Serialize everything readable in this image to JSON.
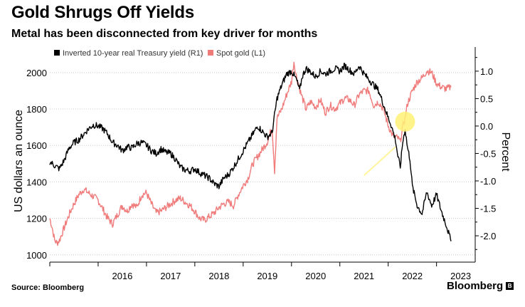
{
  "chart_data": {
    "type": "line",
    "title": "Gold Shrugs Off Yields",
    "subtitle": "Metal has been disconnected from key driver for months",
    "ylabel_left": "US dollars an ounce",
    "ylabel_right": "Percent",
    "ylim_left": [
      960,
      2140
    ],
    "ylim_right": [
      -2.48,
      1.44
    ],
    "yticks_left": [
      1000,
      1200,
      1400,
      1600,
      1800,
      2000
    ],
    "yticks_right": [
      1.0,
      0.5,
      0.0,
      -0.5,
      -1.0,
      -1.5,
      -2.0
    ],
    "ytick_labels_left": [
      "1000",
      "1200",
      "1400",
      "1600",
      "1800",
      "2000"
    ],
    "ytick_labels_right": [
      "1.0",
      "0.5",
      "0.0",
      "-0.5",
      "-1.0",
      "-1.5",
      "-2.0"
    ],
    "xlim": [
      2015.0,
      2023.8
    ],
    "xticks": [
      2016,
      2017,
      2018,
      2019,
      2020,
      2021,
      2022,
      2023
    ],
    "xtick_labels": [
      "2016",
      "2017",
      "2018",
      "2019",
      "2020",
      "2021",
      "2022",
      "2023"
    ],
    "grid": true,
    "legend_position": "top-left",
    "legend": [
      "Inverted 10-year real Treasury yield (R1)",
      "Spot gold (L1)"
    ],
    "series": [
      {
        "name": "Inverted 10-year real Treasury yield (R1)",
        "axis": "right",
        "color": "#000000",
        "x": [
          2015.0,
          2015.1,
          2015.2,
          2015.3,
          2015.4,
          2015.5,
          2015.6,
          2015.7,
          2015.8,
          2015.9,
          2016.0,
          2016.1,
          2016.2,
          2016.3,
          2016.4,
          2016.5,
          2016.6,
          2016.7,
          2016.8,
          2016.9,
          2017.0,
          2017.1,
          2017.2,
          2017.3,
          2017.4,
          2017.5,
          2017.6,
          2017.7,
          2017.8,
          2017.9,
          2018.0,
          2018.1,
          2018.2,
          2018.3,
          2018.4,
          2018.5,
          2018.6,
          2018.7,
          2018.8,
          2018.9,
          2019.0,
          2019.1,
          2019.2,
          2019.3,
          2019.4,
          2019.5,
          2019.6,
          2019.65,
          2019.7,
          2019.8,
          2019.9,
          2020.0,
          2020.1,
          2020.17,
          2020.22,
          2020.3,
          2020.4,
          2020.5,
          2020.6,
          2020.7,
          2020.8,
          2020.9,
          2021.0,
          2021.1,
          2021.2,
          2021.3,
          2021.4,
          2021.5,
          2021.6,
          2021.7,
          2021.8,
          2021.9,
          2022.0,
          2022.05,
          2022.1,
          2022.15,
          2022.2,
          2022.25,
          2022.3,
          2022.35,
          2022.4,
          2022.45,
          2022.5,
          2022.6,
          2022.7,
          2022.8,
          2022.9,
          2023.0,
          2023.1,
          2023.2,
          2023.3
        ],
        "y": [
          -0.65,
          -0.72,
          -0.78,
          -0.62,
          -0.4,
          -0.3,
          -0.25,
          -0.15,
          -0.05,
          0.02,
          0.0,
          -0.05,
          -0.15,
          -0.3,
          -0.35,
          -0.45,
          -0.38,
          -0.4,
          -0.32,
          -0.3,
          -0.35,
          -0.45,
          -0.5,
          -0.42,
          -0.48,
          -0.5,
          -0.6,
          -0.75,
          -0.8,
          -0.82,
          -0.78,
          -0.85,
          -0.9,
          -0.95,
          -1.05,
          -1.1,
          -0.95,
          -0.88,
          -0.75,
          -0.6,
          -0.45,
          -0.3,
          -0.15,
          0.0,
          -0.1,
          -0.2,
          -0.12,
          0.2,
          0.5,
          0.75,
          0.95,
          1.0,
          0.85,
          0.65,
          0.9,
          1.05,
          0.98,
          0.9,
          1.0,
          0.95,
          1.0,
          1.05,
          1.0,
          1.1,
          1.02,
          0.95,
          1.1,
          0.95,
          0.85,
          0.75,
          0.65,
          0.4,
          0.15,
          0.05,
          -0.1,
          -0.25,
          -0.55,
          -0.75,
          -0.3,
          -0.05,
          -0.4,
          -0.6,
          -1.1,
          -1.45,
          -1.6,
          -1.2,
          -1.45,
          -1.25,
          -1.55,
          -1.8,
          -2.1
        ]
      },
      {
        "name": "Spot gold (L1)",
        "axis": "left",
        "color": "#f07b7b",
        "x": [
          2015.0,
          2015.05,
          2015.1,
          2015.15,
          2015.2,
          2015.3,
          2015.4,
          2015.5,
          2015.6,
          2015.7,
          2015.8,
          2015.9,
          2016.0,
          2016.1,
          2016.2,
          2016.3,
          2016.4,
          2016.5,
          2016.6,
          2016.7,
          2016.8,
          2016.9,
          2017.0,
          2017.1,
          2017.2,
          2017.3,
          2017.4,
          2017.5,
          2017.6,
          2017.7,
          2017.8,
          2017.9,
          2018.0,
          2018.1,
          2018.2,
          2018.3,
          2018.4,
          2018.5,
          2018.6,
          2018.7,
          2018.8,
          2018.9,
          2019.0,
          2019.1,
          2019.2,
          2019.3,
          2019.4,
          2019.5,
          2019.6,
          2019.65,
          2019.7,
          2019.8,
          2019.9,
          2020.0,
          2020.05,
          2020.1,
          2020.2,
          2020.3,
          2020.4,
          2020.5,
          2020.6,
          2020.7,
          2020.8,
          2020.9,
          2021.0,
          2021.1,
          2021.2,
          2021.3,
          2021.4,
          2021.5,
          2021.6,
          2021.7,
          2021.8,
          2021.9,
          2022.0,
          2022.1,
          2022.2,
          2022.25,
          2022.3,
          2022.35,
          2022.4,
          2022.5,
          2022.6,
          2022.7,
          2022.8,
          2022.9,
          2023.0,
          2023.1,
          2023.2,
          2023.3
        ],
        "y": [
          1200,
          1150,
          1080,
          1065,
          1080,
          1150,
          1220,
          1280,
          1330,
          1360,
          1340,
          1320,
          1300,
          1250,
          1200,
          1170,
          1220,
          1270,
          1240,
          1280,
          1260,
          1330,
          1340,
          1280,
          1230,
          1240,
          1260,
          1280,
          1300,
          1310,
          1290,
          1270,
          1240,
          1200,
          1190,
          1210,
          1230,
          1260,
          1280,
          1290,
          1270,
          1330,
          1380,
          1420,
          1500,
          1540,
          1580,
          1620,
          1700,
          1460,
          1750,
          1800,
          1880,
          1950,
          2060,
          1980,
          1880,
          1800,
          1840,
          1810,
          1850,
          1780,
          1820,
          1800,
          1830,
          1860,
          1850,
          1820,
          1880,
          1900,
          1900,
          1820,
          1840,
          1800,
          1710,
          1650,
          1640,
          1620,
          1700,
          1750,
          1830,
          1900,
          1950,
          1970,
          2010,
          2000,
          1940,
          1920,
          1910,
          1920
        ]
      }
    ],
    "annotations": [
      {
        "type": "highlight-circle",
        "x": 2022.35,
        "y_right": 0.08,
        "color": "#fff176"
      },
      {
        "type": "arrow",
        "from_x": 2021.5,
        "from_y_right": -0.9,
        "to_x": 2022.15,
        "to_y_right": -0.38,
        "color": "#fff59d"
      }
    ]
  },
  "footer": {
    "source": "Source: Bloomberg",
    "brand": "Bloomberg",
    "brand_mark": "B"
  }
}
